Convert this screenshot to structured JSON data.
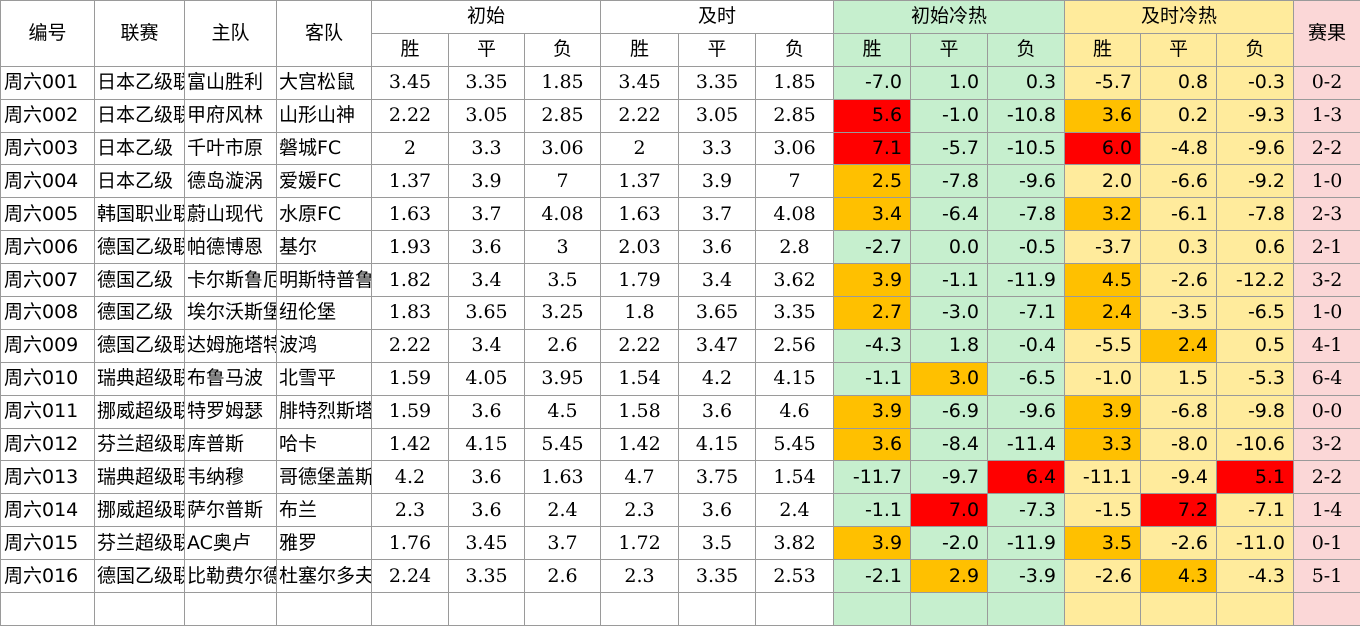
{
  "headers": {
    "id": "编号",
    "league": "联赛",
    "home": "主队",
    "away": "客队",
    "initial": "初始",
    "live": "及时",
    "initial_heat": "初始冷热",
    "live_heat": "及时冷热",
    "result": "赛果",
    "sub": [
      "胜",
      "平",
      "负",
      "胜",
      "平",
      "负",
      "胜",
      "平",
      "负",
      "胜",
      "平",
      "负"
    ]
  },
  "colors": {
    "green": "#c6efce",
    "yellow": "#ffeb9c",
    "pink": "#fbd7d7",
    "orange": "#ffc000",
    "red": "#ff0000"
  },
  "rows": [
    {
      "id": "周六001",
      "league": "日本乙级联赛",
      "home": "富山胜利",
      "away": "大宫松鼠",
      "ini": [
        "3.45",
        "3.35",
        "1.85"
      ],
      "live": [
        "3.45",
        "3.35",
        "1.85"
      ],
      "ih": [
        "-7.0",
        "1.0",
        "0.3"
      ],
      "lh": [
        "-5.7",
        "0.8",
        "-0.3"
      ],
      "ihc": [
        "",
        "",
        ""
      ],
      "lhc": [
        "",
        "",
        ""
      ],
      "score": "0-2"
    },
    {
      "id": "周六002",
      "league": "日本乙级联赛",
      "home": "甲府风林",
      "away": "山形山神",
      "ini": [
        "2.22",
        "3.05",
        "2.85"
      ],
      "live": [
        "2.22",
        "3.05",
        "2.85"
      ],
      "ih": [
        "5.6",
        "-1.0",
        "-10.8"
      ],
      "lh": [
        "3.6",
        "0.2",
        "-9.3"
      ],
      "ihc": [
        "red",
        "",
        ""
      ],
      "lhc": [
        "orange",
        "",
        ""
      ],
      "score": "1-3"
    },
    {
      "id": "周六003",
      "league": "日本乙级",
      "home": "千叶市原",
      "away": "磐城FC",
      "ini": [
        "2",
        "3.3",
        "3.06"
      ],
      "live": [
        "2",
        "3.3",
        "3.06"
      ],
      "ih": [
        "7.1",
        "-5.7",
        "-10.5"
      ],
      "lh": [
        "6.0",
        "-4.8",
        "-9.6"
      ],
      "ihc": [
        "red",
        "",
        ""
      ],
      "lhc": [
        "red",
        "",
        ""
      ],
      "score": "2-2"
    },
    {
      "id": "周六004",
      "league": "日本乙级",
      "home": "德岛漩涡",
      "away": "爱媛FC",
      "ini": [
        "1.37",
        "3.9",
        "7"
      ],
      "live": [
        "1.37",
        "3.9",
        "7"
      ],
      "ih": [
        "2.5",
        "-7.8",
        "-9.6"
      ],
      "lh": [
        "2.0",
        "-6.6",
        "-9.2"
      ],
      "ihc": [
        "orange",
        "",
        ""
      ],
      "lhc": [
        "",
        "",
        ""
      ],
      "score": "1-0"
    },
    {
      "id": "周六005",
      "league": "韩国职业联赛",
      "home": "蔚山现代",
      "away": "水原FC",
      "ini": [
        "1.63",
        "3.7",
        "4.08"
      ],
      "live": [
        "1.63",
        "3.7",
        "4.08"
      ],
      "ih": [
        "3.4",
        "-6.4",
        "-7.8"
      ],
      "lh": [
        "3.2",
        "-6.1",
        "-7.8"
      ],
      "ihc": [
        "orange",
        "",
        ""
      ],
      "lhc": [
        "orange",
        "",
        ""
      ],
      "score": "2-3"
    },
    {
      "id": "周六006",
      "league": "德国乙级联赛",
      "home": "帕德博恩",
      "away": "基尔",
      "ini": [
        "1.93",
        "3.6",
        "3"
      ],
      "live": [
        "2.03",
        "3.6",
        "2.8"
      ],
      "ih": [
        "-2.7",
        "0.0",
        "-0.5"
      ],
      "lh": [
        "-3.7",
        "0.3",
        "0.6"
      ],
      "ihc": [
        "",
        "",
        ""
      ],
      "lhc": [
        "",
        "",
        ""
      ],
      "score": "2-1"
    },
    {
      "id": "周六007",
      "league": "德国乙级",
      "home": "卡尔斯鲁厄",
      "away": "明斯特普鲁士",
      "ini": [
        "1.82",
        "3.4",
        "3.5"
      ],
      "live": [
        "1.79",
        "3.4",
        "3.62"
      ],
      "ih": [
        "3.9",
        "-1.1",
        "-11.9"
      ],
      "lh": [
        "4.5",
        "-2.6",
        "-12.2"
      ],
      "ihc": [
        "orange",
        "",
        ""
      ],
      "lhc": [
        "orange",
        "",
        ""
      ],
      "score": "3-2"
    },
    {
      "id": "周六008",
      "league": "德国乙级",
      "home": "埃尔沃斯堡",
      "away": "纽伦堡",
      "ini": [
        "1.83",
        "3.65",
        "3.25"
      ],
      "live": [
        "1.8",
        "3.65",
        "3.35"
      ],
      "ih": [
        "2.7",
        "-3.0",
        "-7.1"
      ],
      "lh": [
        "2.4",
        "-3.5",
        "-6.5"
      ],
      "ihc": [
        "orange",
        "",
        ""
      ],
      "lhc": [
        "orange",
        "",
        ""
      ],
      "score": "1-0"
    },
    {
      "id": "周六009",
      "league": "德国乙级联赛",
      "home": "达姆施塔特",
      "away": "波鸿",
      "ini": [
        "2.22",
        "3.4",
        "2.6"
      ],
      "live": [
        "2.22",
        "3.47",
        "2.56"
      ],
      "ih": [
        "-4.3",
        "1.8",
        "-0.4"
      ],
      "lh": [
        "-5.5",
        "2.4",
        "0.5"
      ],
      "ihc": [
        "",
        "",
        ""
      ],
      "lhc": [
        "",
        "orange",
        ""
      ],
      "score": "4-1"
    },
    {
      "id": "周六010",
      "league": "瑞典超级联赛",
      "home": "布鲁马波",
      "away": "北雪平",
      "ini": [
        "1.59",
        "4.05",
        "3.95"
      ],
      "live": [
        "1.54",
        "4.2",
        "4.15"
      ],
      "ih": [
        "-1.1",
        "3.0",
        "-6.5"
      ],
      "lh": [
        "-1.0",
        "1.5",
        "-5.3"
      ],
      "ihc": [
        "",
        "orange",
        ""
      ],
      "lhc": [
        "",
        "",
        ""
      ],
      "score": "6-4"
    },
    {
      "id": "周六011",
      "league": "挪威超级联赛",
      "home": "特罗姆瑟",
      "away": "腓特烈斯塔",
      "ini": [
        "1.59",
        "3.6",
        "4.5"
      ],
      "live": [
        "1.58",
        "3.6",
        "4.6"
      ],
      "ih": [
        "3.9",
        "-6.9",
        "-9.6"
      ],
      "lh": [
        "3.9",
        "-6.8",
        "-9.8"
      ],
      "ihc": [
        "orange",
        "",
        ""
      ],
      "lhc": [
        "orange",
        "",
        ""
      ],
      "score": "0-0"
    },
    {
      "id": "周六012",
      "league": "芬兰超级联赛",
      "home": "库普斯",
      "away": "哈卡",
      "ini": [
        "1.42",
        "4.15",
        "5.45"
      ],
      "live": [
        "1.42",
        "4.15",
        "5.45"
      ],
      "ih": [
        "3.6",
        "-8.4",
        "-11.4"
      ],
      "lh": [
        "3.3",
        "-8.0",
        "-10.6"
      ],
      "ihc": [
        "orange",
        "",
        ""
      ],
      "lhc": [
        "orange",
        "",
        ""
      ],
      "score": "3-2"
    },
    {
      "id": "周六013",
      "league": "瑞典超级联赛",
      "home": "韦纳穆",
      "away": "哥德堡盖斯",
      "ini": [
        "4.2",
        "3.6",
        "1.63"
      ],
      "live": [
        "4.7",
        "3.75",
        "1.54"
      ],
      "ih": [
        "-11.7",
        "-9.7",
        "6.4"
      ],
      "lh": [
        "-11.1",
        "-9.4",
        "5.1"
      ],
      "ihc": [
        "",
        "",
        "red"
      ],
      "lhc": [
        "",
        "",
        "red"
      ],
      "score": "2-2"
    },
    {
      "id": "周六014",
      "league": "挪威超级联赛",
      "home": "萨尔普斯",
      "away": "布兰",
      "ini": [
        "2.3",
        "3.6",
        "2.4"
      ],
      "live": [
        "2.3",
        "3.6",
        "2.4"
      ],
      "ih": [
        "-1.1",
        "7.0",
        "-7.3"
      ],
      "lh": [
        "-1.5",
        "7.2",
        "-7.1"
      ],
      "ihc": [
        "",
        "red",
        ""
      ],
      "lhc": [
        "",
        "red",
        ""
      ],
      "score": "1-4"
    },
    {
      "id": "周六015",
      "league": "芬兰超级联赛",
      "home": "AC奥卢",
      "away": "雅罗",
      "ini": [
        "1.76",
        "3.45",
        "3.7"
      ],
      "live": [
        "1.72",
        "3.5",
        "3.82"
      ],
      "ih": [
        "3.9",
        "-2.0",
        "-11.9"
      ],
      "lh": [
        "3.5",
        "-2.6",
        "-11.0"
      ],
      "ihc": [
        "orange",
        "",
        ""
      ],
      "lhc": [
        "orange",
        "",
        ""
      ],
      "score": "0-1"
    },
    {
      "id": "周六016",
      "league": "德国乙级联赛",
      "home": "比勒费尔德",
      "away": "杜塞尔多夫",
      "ini": [
        "2.24",
        "3.35",
        "2.6"
      ],
      "live": [
        "2.3",
        "3.35",
        "2.53"
      ],
      "ih": [
        "-2.1",
        "2.9",
        "-3.9"
      ],
      "lh": [
        "-2.6",
        "4.3",
        "-4.3"
      ],
      "ihc": [
        "",
        "orange",
        ""
      ],
      "lhc": [
        "",
        "orange",
        ""
      ],
      "score": "5-1"
    }
  ]
}
